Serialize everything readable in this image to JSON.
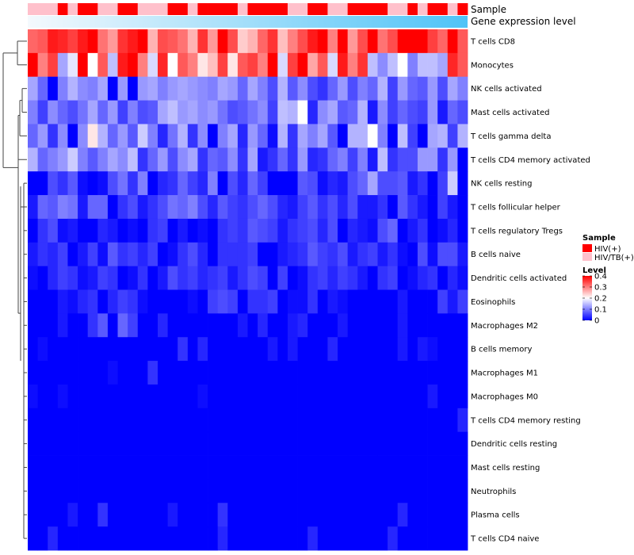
{
  "chart_data": {
    "type": "heatmap",
    "title": "",
    "rows": [
      "T cells CD8",
      "Monocytes",
      "NK cells activated",
      "Mast cells activated",
      "T cells gamma delta",
      "T cells CD4 memory activated",
      "NK cells resting",
      "T cells follicular helper",
      "T cells regulatory  Tregs",
      "B cells naive",
      "Dendritic cells activated",
      "Eosinophils",
      "Macrophages M2",
      "B cells memory",
      "Macrophages M1",
      "Macrophages M0",
      "T cells CD4 memory resting",
      "Dendritic cells resting",
      "Mast cells resting",
      "Neutrophils",
      "Plasma cells",
      "T cells CD4 naive"
    ],
    "n_columns": 44,
    "annotations": [
      {
        "name": "Sample",
        "values": [
          "HIV/TB(+)",
          "HIV/TB(+)",
          "HIV/TB(+)",
          "HIV(+)",
          "HIV/TB(+)",
          "HIV(+)",
          "HIV(+)",
          "HIV/TB(+)",
          "HIV/TB(+)",
          "HIV(+)",
          "HIV(+)",
          "HIV/TB(+)",
          "HIV/TB(+)",
          "HIV/TB(+)",
          "HIV(+)",
          "HIV(+)",
          "HIV/TB(+)",
          "HIV(+)",
          "HIV(+)",
          "HIV(+)",
          "HIV(+)",
          "HIV/TB(+)",
          "HIV(+)",
          "HIV(+)",
          "HIV(+)",
          "HIV(+)",
          "HIV/TB(+)",
          "HIV/TB(+)",
          "HIV(+)",
          "HIV(+)",
          "HIV/TB(+)",
          "HIV/TB(+)",
          "HIV(+)",
          "HIV(+)",
          "HIV(+)",
          "HIV(+)",
          "HIV/TB(+)",
          "HIV/TB(+)",
          "HIV(+)",
          "HIV/TB(+)",
          "HIV(+)",
          "HIV(+)",
          "HIV/TB(+)",
          "HIV(+)"
        ]
      },
      {
        "name": "Gene expression level",
        "gradient": [
          "#f4f9fd",
          "#4fc3f7"
        ]
      }
    ],
    "legend_sample": {
      "title": "Sample",
      "entries": [
        {
          "label": "HIV(+)",
          "color": "#ff0000"
        },
        {
          "label": "HIV/TB(+)",
          "color": "#ffc0cb"
        }
      ]
    },
    "legend_level": {
      "title": "Level",
      "ticks": [
        0,
        0.1,
        0.2,
        0.3,
        0.4
      ],
      "range": [
        0,
        0.4
      ],
      "colors": [
        "#0000ff",
        "#ffffff",
        "#ff0000"
      ]
    },
    "values": [
      [
        0.32,
        0.33,
        0.38,
        0.37,
        0.35,
        0.38,
        0.4,
        0.31,
        0.28,
        0.36,
        0.38,
        0.4,
        0.26,
        0.34,
        0.33,
        0.31,
        0.26,
        0.36,
        0.28,
        0.4,
        0.34,
        0.24,
        0.26,
        0.32,
        0.36,
        0.25,
        0.3,
        0.34,
        0.38,
        0.4,
        0.3,
        0.4,
        0.28,
        0.34,
        0.4,
        0.31,
        0.34,
        0.4,
        0.4,
        0.4,
        0.35,
        0.32,
        0.4,
        0.33
      ],
      [
        0.4,
        0.3,
        0.35,
        0.13,
        0.18,
        0.4,
        0.2,
        0.33,
        0.15,
        0.38,
        0.4,
        0.3,
        0.17,
        0.37,
        0.2,
        0.33,
        0.3,
        0.22,
        0.25,
        0.35,
        0.22,
        0.33,
        0.35,
        0.3,
        0.4,
        0.17,
        0.35,
        0.4,
        0.27,
        0.33,
        0.17,
        0.38,
        0.3,
        0.36,
        0.15,
        0.11,
        0.15,
        0.2,
        0.1,
        0.15,
        0.15,
        0.13,
        0.37,
        0.33
      ],
      [
        0.13,
        0.08,
        0.0,
        0.1,
        0.14,
        0.11,
        0.1,
        0.13,
        0.0,
        0.12,
        0.0,
        0.12,
        0.13,
        0.1,
        0.12,
        0.13,
        0.12,
        0.11,
        0.1,
        0.13,
        0.12,
        0.08,
        0.13,
        0.1,
        0.06,
        0.14,
        0.07,
        0.11,
        0.06,
        0.04,
        0.08,
        0.12,
        0.06,
        0.1,
        0.08,
        0.14,
        0.05,
        0.12,
        0.08,
        0.07,
        0.12,
        0.06,
        0.13,
        0.1
      ],
      [
        0.1,
        0.05,
        0.11,
        0.08,
        0.06,
        0.09,
        0.13,
        0.08,
        0.12,
        0.05,
        0.1,
        0.06,
        0.07,
        0.13,
        0.15,
        0.12,
        0.13,
        0.11,
        0.12,
        0.09,
        0.06,
        0.07,
        0.09,
        0.11,
        0.05,
        0.15,
        0.14,
        0.2,
        0.03,
        0.11,
        0.13,
        0.07,
        0.08,
        0.14,
        0.02,
        0.11,
        0.05,
        0.08,
        0.06,
        0.05,
        0.12,
        0.02,
        0.08,
        0.06
      ],
      [
        0.08,
        0.12,
        0.04,
        0.11,
        0.0,
        0.11,
        0.22,
        0.14,
        0.08,
        0.12,
        0.07,
        0.16,
        0.1,
        0.03,
        0.09,
        0.14,
        0.04,
        0.11,
        0.0,
        0.1,
        0.13,
        0.03,
        0.12,
        0.08,
        0.01,
        0.14,
        0.04,
        0.13,
        0.1,
        0.13,
        0.07,
        0.0,
        0.14,
        0.14,
        0.2,
        0.1,
        0.0,
        0.15,
        0.05,
        0.0,
        0.13,
        0.14,
        0.05,
        0.14
      ],
      [
        0.14,
        0.08,
        0.1,
        0.12,
        0.16,
        0.1,
        0.07,
        0.1,
        0.13,
        0.11,
        0.15,
        0.04,
        0.08,
        0.12,
        0.06,
        0.11,
        0.13,
        0.04,
        0.08,
        0.07,
        0.11,
        0.04,
        0.13,
        0.02,
        0.04,
        0.08,
        0.04,
        0.12,
        0.03,
        0.04,
        0.08,
        0.1,
        0.05,
        0.1,
        0.02,
        0.15,
        0.04,
        0.06,
        0.06,
        0.12,
        0.12,
        0.04,
        0.12,
        0.0
      ],
      [
        0.0,
        0.0,
        0.06,
        0.04,
        0.07,
        0.01,
        0.0,
        0.01,
        0.06,
        0.09,
        0.04,
        0.1,
        0.0,
        0.03,
        0.04,
        0.08,
        0.05,
        0.03,
        0.1,
        0.0,
        0.06,
        0.03,
        0.08,
        0.05,
        0.0,
        0.0,
        0.0,
        0.07,
        0.06,
        0.01,
        0.03,
        0.02,
        0.06,
        0.08,
        0.13,
        0.06,
        0.06,
        0.07,
        0.02,
        0.04,
        0.0,
        0.05,
        0.16,
        0.0
      ],
      [
        0.02,
        0.08,
        0.07,
        0.1,
        0.09,
        0.02,
        0.08,
        0.08,
        0.0,
        0.04,
        0.06,
        0.02,
        0.04,
        0.06,
        0.09,
        0.08,
        0.1,
        0.06,
        0.03,
        0.07,
        0.05,
        0.04,
        0.06,
        0.08,
        0.06,
        0.03,
        0.02,
        0.05,
        0.07,
        0.04,
        0.06,
        0.03,
        0.06,
        0.02,
        0.02,
        0.04,
        0.0,
        0.07,
        0.04,
        0.02,
        0.0,
        0.05,
        0.02,
        0.0
      ],
      [
        0.0,
        0.04,
        0.06,
        0.01,
        0.02,
        0.0,
        0.0,
        0.03,
        0.02,
        0.0,
        0.01,
        0.0,
        0.04,
        0.05,
        0.0,
        0.02,
        0.0,
        0.01,
        0.0,
        0.04,
        0.05,
        0.04,
        0.07,
        0.06,
        0.05,
        0.02,
        0.04,
        0.05,
        0.06,
        0.03,
        0.06,
        0.0,
        0.03,
        0.02,
        0.01,
        0.06,
        0.08,
        0.0,
        0.02,
        0.04,
        0.0,
        0.01,
        0.03,
        0.0
      ],
      [
        0.02,
        0.04,
        0.03,
        0.05,
        0.0,
        0.02,
        0.05,
        0.01,
        0.07,
        0.04,
        0.05,
        0.03,
        0.05,
        0.0,
        0.01,
        0.04,
        0.06,
        0.03,
        0.0,
        0.04,
        0.04,
        0.04,
        0.05,
        0.0,
        0.0,
        0.02,
        0.03,
        0.04,
        0.07,
        0.05,
        0.04,
        0.06,
        0.02,
        0.04,
        0.05,
        0.02,
        0.04,
        0.01,
        0.0,
        0.06,
        0.01,
        0.06,
        0.06,
        0.02
      ],
      [
        0.01,
        0.0,
        0.03,
        0.05,
        0.04,
        0.01,
        0.02,
        0.05,
        0.04,
        0.0,
        0.01,
        0.04,
        0.0,
        0.02,
        0.06,
        0.04,
        0.05,
        0.03,
        0.04,
        0.05,
        0.02,
        0.04,
        0.06,
        0.05,
        0.0,
        0.05,
        0.0,
        0.01,
        0.04,
        0.05,
        0.03,
        0.05,
        0.04,
        0.02,
        0.0,
        0.04,
        0.05,
        0.0,
        0.01,
        0.03,
        0.04,
        0.0,
        0.03,
        0.01
      ],
      [
        0.0,
        0.0,
        0.0,
        0.02,
        0.01,
        0.03,
        0.04,
        0.0,
        0.03,
        0.05,
        0.04,
        0.01,
        0.0,
        0.0,
        0.0,
        0.0,
        0.01,
        0.0,
        0.05,
        0.06,
        0.05,
        0.0,
        0.04,
        0.04,
        0.05,
        0.0,
        0.01,
        0.01,
        0.04,
        0.0,
        0.02,
        0.01,
        0.0,
        0.0,
        0.0,
        0.0,
        0.0,
        0.02,
        0.0,
        0.0,
        0.0,
        0.05,
        0.02,
        0.05
      ],
      [
        0.0,
        0.0,
        0.0,
        0.02,
        0.0,
        0.0,
        0.04,
        0.07,
        0.0,
        0.08,
        0.05,
        0.0,
        0.0,
        0.03,
        0.0,
        0.0,
        0.0,
        0.0,
        0.0,
        0.0,
        0.0,
        0.02,
        0.0,
        0.03,
        0.0,
        0.0,
        0.02,
        0.03,
        0.0,
        0.0,
        0.0,
        0.02,
        0.0,
        0.0,
        0.0,
        0.0,
        0.0,
        0.02,
        0.0,
        0.0,
        0.0,
        0.0,
        0.0,
        0.0
      ],
      [
        0.0,
        0.01,
        0.0,
        0.0,
        0.0,
        0.0,
        0.0,
        0.0,
        0.0,
        0.0,
        0.0,
        0.0,
        0.0,
        0.0,
        0.0,
        0.04,
        0.0,
        0.03,
        0.0,
        0.0,
        0.0,
        0.0,
        0.0,
        0.0,
        0.02,
        0.0,
        0.02,
        0.0,
        0.0,
        0.0,
        0.03,
        0.0,
        0.0,
        0.0,
        0.0,
        0.0,
        0.0,
        0.02,
        0.0,
        0.02,
        0.01,
        0.0,
        0.0,
        0.0
      ],
      [
        0.0,
        0.0,
        0.0,
        0.0,
        0.0,
        0.0,
        0.0,
        0.0,
        0.01,
        0.0,
        0.0,
        0.0,
        0.04,
        0.0,
        0.0,
        0.0,
        0.0,
        0.0,
        0.0,
        0.0,
        0.0,
        0.0,
        0.0,
        0.0,
        0.0,
        0.0,
        0.0,
        0.0,
        0.0,
        0.0,
        0.0,
        0.0,
        0.0,
        0.0,
        0.0,
        0.0,
        0.0,
        0.0,
        0.0,
        0.0,
        0.0,
        0.0,
        0.0,
        0.0
      ],
      [
        0.01,
        0.0,
        0.0,
        0.01,
        0.0,
        0.0,
        0.0,
        0.0,
        0.0,
        0.0,
        0.0,
        0.0,
        0.0,
        0.0,
        0.0,
        0.0,
        0.0,
        0.01,
        0.0,
        0.0,
        0.0,
        0.0,
        0.0,
        0.0,
        0.0,
        0.0,
        0.0,
        0.0,
        0.0,
        0.0,
        0.0,
        0.0,
        0.0,
        0.0,
        0.0,
        0.0,
        0.0,
        0.0,
        0.0,
        0.0,
        0.02,
        0.0,
        0.0,
        0.0
      ],
      [
        0.0,
        0.0,
        0.0,
        0.0,
        0.0,
        0.0,
        0.0,
        0.0,
        0.0,
        0.0,
        0.0,
        0.0,
        0.0,
        0.0,
        0.0,
        0.0,
        0.0,
        0.0,
        0.0,
        0.0,
        0.0,
        0.0,
        0.0,
        0.0,
        0.0,
        0.0,
        0.0,
        0.0,
        0.0,
        0.0,
        0.0,
        0.0,
        0.0,
        0.0,
        0.0,
        0.0,
        0.0,
        0.0,
        0.0,
        0.0,
        0.0,
        0.0,
        0.0,
        0.03
      ],
      [
        0.0,
        0.0,
        0.0,
        0.0,
        0.0,
        0.0,
        0.0,
        0.0,
        0.0,
        0.0,
        0.0,
        0.0,
        0.0,
        0.0,
        0.0,
        0.0,
        0.0,
        0.0,
        0.0,
        0.0,
        0.0,
        0.0,
        0.0,
        0.0,
        0.0,
        0.0,
        0.0,
        0.0,
        0.0,
        0.0,
        0.0,
        0.0,
        0.0,
        0.0,
        0.0,
        0.0,
        0.0,
        0.0,
        0.0,
        0.0,
        0.0,
        0.0,
        0.0,
        0.0
      ],
      [
        0.0,
        0.0,
        0.0,
        0.0,
        0.0,
        0.0,
        0.0,
        0.0,
        0.0,
        0.0,
        0.0,
        0.0,
        0.0,
        0.0,
        0.0,
        0.0,
        0.0,
        0.0,
        0.0,
        0.0,
        0.0,
        0.0,
        0.0,
        0.0,
        0.0,
        0.0,
        0.0,
        0.0,
        0.0,
        0.0,
        0.0,
        0.0,
        0.0,
        0.0,
        0.0,
        0.0,
        0.0,
        0.0,
        0.0,
        0.0,
        0.0,
        0.0,
        0.0,
        0.0
      ],
      [
        0.0,
        0.0,
        0.0,
        0.0,
        0.0,
        0.0,
        0.0,
        0.0,
        0.0,
        0.0,
        0.0,
        0.0,
        0.0,
        0.0,
        0.0,
        0.0,
        0.0,
        0.0,
        0.0,
        0.0,
        0.0,
        0.0,
        0.0,
        0.0,
        0.0,
        0.0,
        0.0,
        0.0,
        0.0,
        0.0,
        0.0,
        0.0,
        0.0,
        0.0,
        0.0,
        0.0,
        0.0,
        0.0,
        0.0,
        0.0,
        0.0,
        0.0,
        0.0,
        0.0
      ],
      [
        0.0,
        0.0,
        0.0,
        0.0,
        0.02,
        0.0,
        0.0,
        0.04,
        0.0,
        0.0,
        0.0,
        0.0,
        0.0,
        0.0,
        0.02,
        0.0,
        0.0,
        0.0,
        0.0,
        0.04,
        0.0,
        0.0,
        0.0,
        0.0,
        0.0,
        0.0,
        0.0,
        0.0,
        0.0,
        0.0,
        0.0,
        0.0,
        0.0,
        0.0,
        0.0,
        0.0,
        0.0,
        0.03,
        0.0,
        0.0,
        0.0,
        0.0,
        0.0,
        0.0
      ],
      [
        0.0,
        0.0,
        0.03,
        0.0,
        0.0,
        0.0,
        0.0,
        0.0,
        0.0,
        0.0,
        0.0,
        0.0,
        0.0,
        0.0,
        0.0,
        0.0,
        0.0,
        0.0,
        0.0,
        0.03,
        0.0,
        0.0,
        0.0,
        0.0,
        0.0,
        0.0,
        0.0,
        0.0,
        0.03,
        0.0,
        0.0,
        0.0,
        0.0,
        0.0,
        0.0,
        0.0,
        0.03,
        0.0,
        0.0,
        0.0,
        0.0,
        0.0,
        0.0,
        0.0
      ]
    ]
  }
}
